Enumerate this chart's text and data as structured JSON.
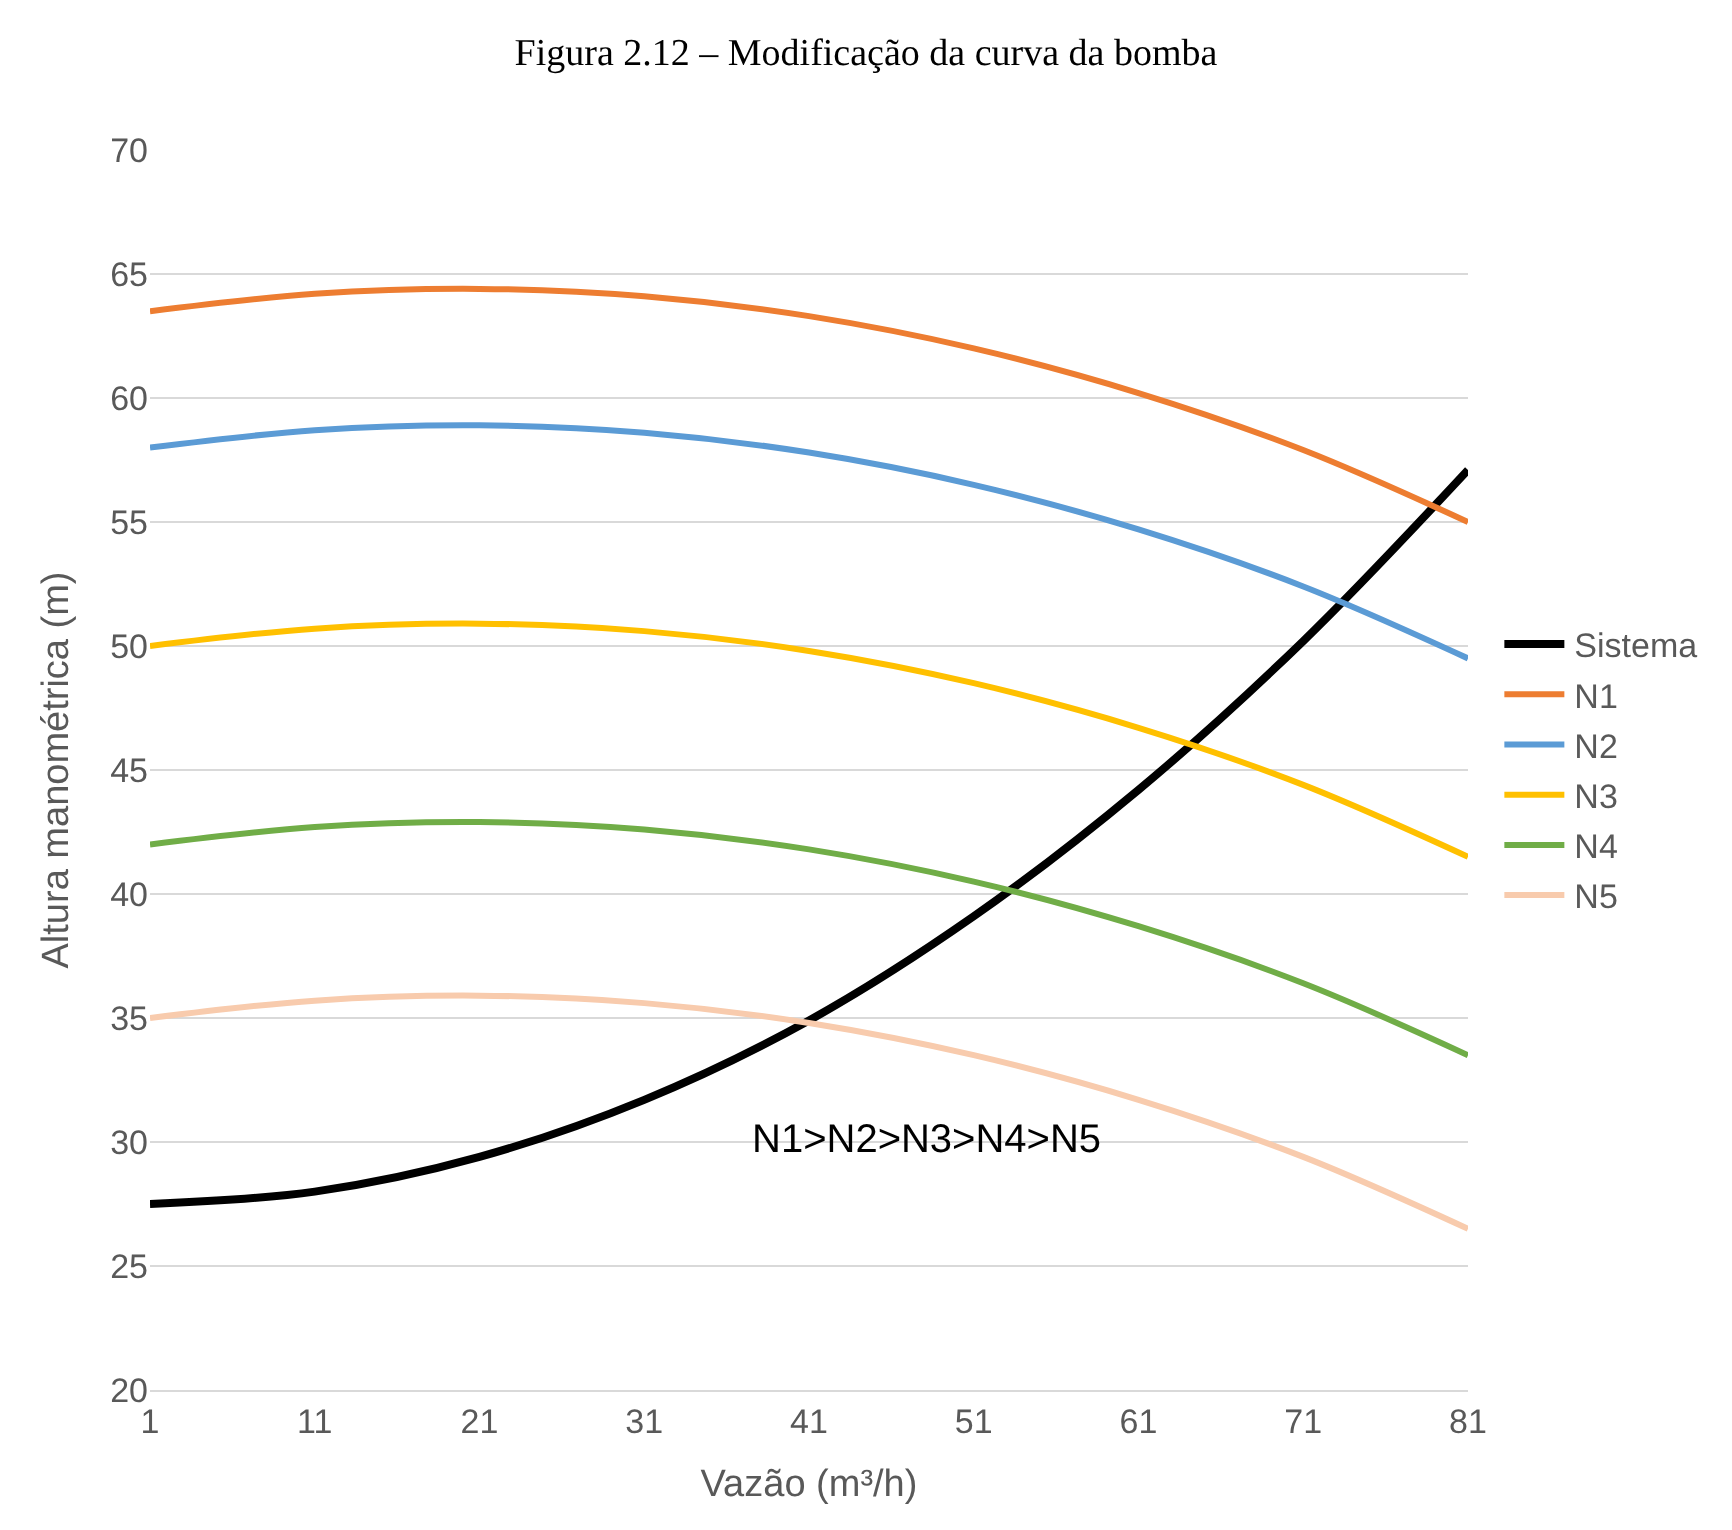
{
  "chart_data": {
    "type": "line",
    "title": "Figura 2.12 – Modificação da curva da bomba",
    "xlabel": "Vazão (m³/h)",
    "ylabel": "Altura manométrica (m)",
    "x": [
      1,
      11,
      21,
      31,
      41,
      51,
      61,
      71,
      81
    ],
    "series": [
      {
        "name": "Sistema",
        "color": "#000000",
        "values": [
          27.5,
          28.0,
          29.4,
          31.7,
          34.9,
          39.1,
          44.2,
          50.2,
          57.1
        ]
      },
      {
        "name": "N1",
        "color": "#ed7d31",
        "values": [
          63.5,
          64.2,
          64.4,
          64.1,
          63.3,
          62.0,
          60.2,
          57.9,
          55.0
        ]
      },
      {
        "name": "N2",
        "color": "#5b9bd5",
        "values": [
          58.0,
          58.7,
          58.9,
          58.6,
          57.8,
          56.5,
          54.7,
          52.4,
          49.5
        ]
      },
      {
        "name": "N3",
        "color": "#ffc000",
        "values": [
          50.0,
          50.7,
          50.9,
          50.6,
          49.8,
          48.5,
          46.7,
          44.4,
          41.5
        ]
      },
      {
        "name": "N4",
        "color": "#70ad47",
        "values": [
          42.0,
          42.7,
          42.9,
          42.6,
          41.8,
          40.5,
          38.7,
          36.4,
          33.5
        ]
      },
      {
        "name": "N5",
        "color": "#f8cbad",
        "values": [
          35.0,
          35.7,
          35.9,
          35.6,
          34.8,
          33.5,
          31.7,
          29.4,
          26.5
        ]
      }
    ],
    "xlim": [
      1,
      81
    ],
    "xticks": [
      1,
      11,
      21,
      31,
      41,
      51,
      61,
      71,
      81
    ],
    "ylim": [
      20,
      70
    ],
    "yticks": [
      20,
      25,
      30,
      35,
      40,
      45,
      50,
      55,
      60,
      65,
      70
    ],
    "grid": "y",
    "legend": "right",
    "marker": "none",
    "line_style": "solid",
    "annotations": [
      "N1>N2>N3>N4>N5"
    ]
  }
}
